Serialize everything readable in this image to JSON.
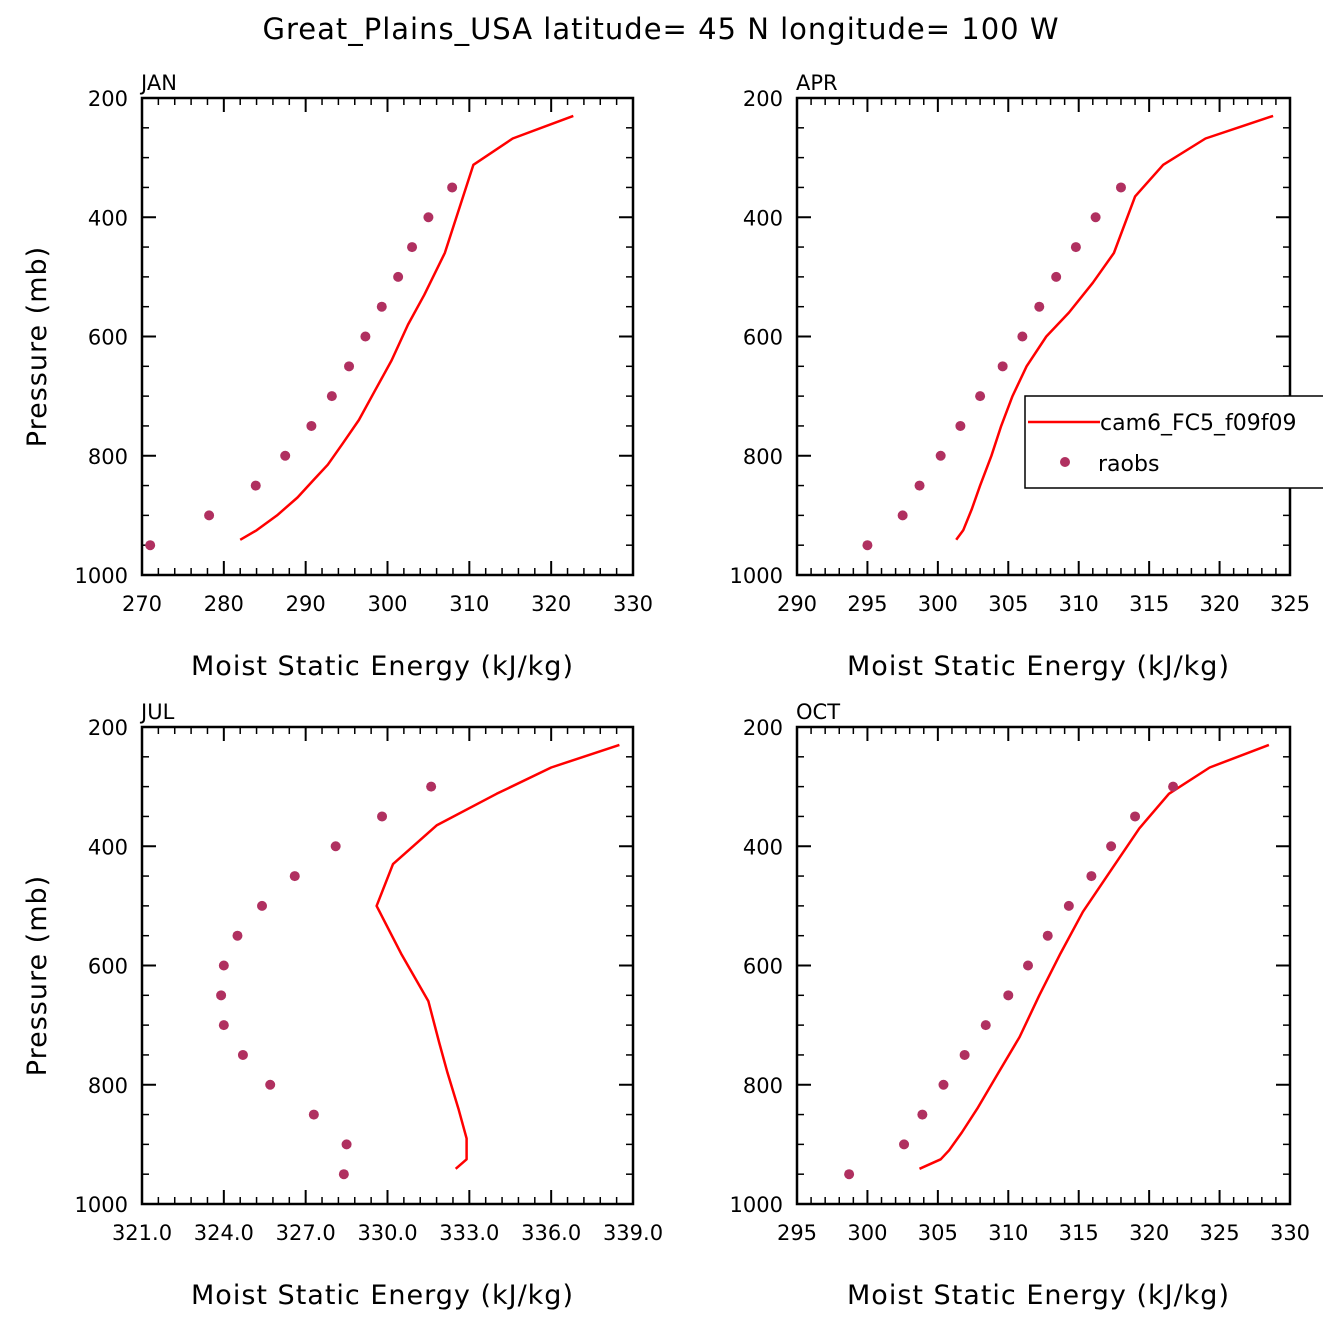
{
  "title": "Great_Plains_USA  latitude= 45 N longitude= 100 W",
  "colors": {
    "model": "#ff0000",
    "obs": "#b03060",
    "axes": "#000000"
  },
  "legend": {
    "placement": "right-middle of APR panel",
    "entries": [
      {
        "label": "cam6_FC5_f09f09",
        "style": "line",
        "color": "#ff0000"
      },
      {
        "label": "raobs",
        "style": "marker",
        "color": "#b03060"
      }
    ]
  },
  "chart_data": [
    {
      "type": "line",
      "panel_label": "JAN",
      "xlabel": "Moist Static Energy (kJ/kg)",
      "ylabel": "Pressure (mb)",
      "xlim": [
        270,
        330
      ],
      "ylim": [
        1000,
        200
      ],
      "y_inverted": true,
      "x_ticks": [
        "270",
        "280",
        "290",
        "300",
        "310",
        "320",
        "330"
      ],
      "x_tick_values": [
        270,
        280,
        290,
        300,
        310,
        320,
        330
      ],
      "y_ticks": [
        "200",
        "400",
        "600",
        "800",
        "1000"
      ],
      "y_tick_values": [
        200,
        400,
        600,
        800,
        1000
      ],
      "series": [
        {
          "name": "cam6_FC5_f09f09",
          "style": "line",
          "x": [
            282.0,
            284.0,
            286.5,
            289.0,
            291.0,
            292.7,
            294.5,
            296.5,
            298.5,
            300.5,
            302.5,
            304.5,
            307.0,
            310.5,
            315.3,
            322.7
          ],
          "y": [
            941,
            925,
            900,
            870,
            840,
            815,
            780,
            740,
            690,
            640,
            580,
            530,
            460,
            312,
            268,
            230
          ]
        },
        {
          "name": "raobs",
          "style": "marker",
          "x": [
            271.0,
            278.2,
            283.9,
            287.5,
            290.7,
            293.2,
            295.3,
            297.3,
            299.3,
            301.3,
            303.0,
            305.0,
            307.9
          ],
          "y": [
            950,
            900,
            850,
            800,
            750,
            700,
            650,
            600,
            550,
            500,
            450,
            400,
            350
          ]
        }
      ]
    },
    {
      "type": "line",
      "panel_label": "APR",
      "xlabel": "Moist Static Energy (kJ/kg)",
      "ylabel": "",
      "xlim": [
        290,
        325
      ],
      "ylim": [
        1000,
        200
      ],
      "y_inverted": true,
      "x_ticks": [
        "290",
        "295",
        "300",
        "305",
        "310",
        "315",
        "320",
        "325"
      ],
      "x_tick_values": [
        290,
        295,
        300,
        305,
        310,
        315,
        320,
        325
      ],
      "y_ticks": [
        "200",
        "400",
        "600",
        "800",
        "1000"
      ],
      "y_tick_values": [
        200,
        400,
        600,
        800,
        1000
      ],
      "series": [
        {
          "name": "cam6_FC5_f09f09",
          "style": "line",
          "x": [
            301.3,
            301.8,
            302.4,
            303.0,
            303.8,
            304.5,
            305.3,
            306.3,
            307.7,
            309.3,
            311.0,
            312.5,
            314.0,
            316.0,
            319.0,
            323.8
          ],
          "y": [
            941,
            925,
            890,
            850,
            800,
            750,
            700,
            650,
            600,
            560,
            510,
            460,
            365,
            312,
            268,
            230
          ]
        },
        {
          "name": "raobs",
          "style": "marker",
          "x": [
            295.0,
            297.5,
            298.7,
            300.2,
            301.6,
            303.0,
            304.6,
            306.0,
            307.2,
            308.4,
            309.8,
            311.2,
            313.0
          ],
          "y": [
            950,
            900,
            850,
            800,
            750,
            700,
            650,
            600,
            550,
            500,
            450,
            400,
            350
          ]
        }
      ]
    },
    {
      "type": "line",
      "panel_label": "JUL",
      "xlabel": "Moist Static Energy (kJ/kg)",
      "ylabel": "Pressure (mb)",
      "xlim": [
        321.0,
        339.0
      ],
      "ylim": [
        1000,
        200
      ],
      "y_inverted": true,
      "x_ticks": [
        "321.0",
        "324.0",
        "327.0",
        "330.0",
        "333.0",
        "336.0",
        "339.0"
      ],
      "x_tick_values": [
        321,
        324,
        327,
        330,
        333,
        336,
        339
      ],
      "y_ticks": [
        "200",
        "400",
        "600",
        "800",
        "1000"
      ],
      "y_tick_values": [
        200,
        400,
        600,
        800,
        1000
      ],
      "series": [
        {
          "name": "cam6_FC5_f09f09",
          "style": "line",
          "x": [
            332.5,
            332.9,
            332.9,
            332.6,
            332.2,
            331.9,
            331.5,
            330.5,
            329.6,
            330.2,
            331.8,
            334.0,
            336.0,
            338.5
          ],
          "y": [
            941,
            925,
            890,
            840,
            780,
            730,
            660,
            580,
            500,
            430,
            365,
            312,
            268,
            230
          ]
        },
        {
          "name": "raobs",
          "style": "marker",
          "x": [
            328.4,
            328.5,
            327.3,
            325.7,
            324.7,
            324.0,
            323.9,
            324.0,
            324.5,
            325.4,
            326.6,
            328.1,
            329.8,
            331.6
          ],
          "y": [
            950,
            900,
            850,
            800,
            750,
            700,
            650,
            600,
            550,
            500,
            450,
            400,
            350,
            300
          ]
        }
      ]
    },
    {
      "type": "line",
      "panel_label": "OCT",
      "xlabel": "Moist Static Energy (kJ/kg)",
      "ylabel": "",
      "xlim": [
        295,
        330
      ],
      "ylim": [
        1000,
        200
      ],
      "y_inverted": true,
      "x_ticks": [
        "295",
        "300",
        "305",
        "310",
        "315",
        "320",
        "325",
        "330"
      ],
      "x_tick_values": [
        295,
        300,
        305,
        310,
        315,
        320,
        325,
        330
      ],
      "y_ticks": [
        "200",
        "400",
        "600",
        "800",
        "1000"
      ],
      "y_tick_values": [
        200,
        400,
        600,
        800,
        1000
      ],
      "series": [
        {
          "name": "cam6_FC5_f09f09",
          "style": "line",
          "x": [
            303.7,
            305.2,
            305.8,
            306.7,
            307.8,
            309.3,
            310.8,
            312.2,
            313.7,
            315.3,
            317.3,
            319.3,
            321.4,
            324.3,
            328.5
          ],
          "y": [
            941,
            925,
            910,
            880,
            840,
            780,
            720,
            650,
            580,
            510,
            440,
            370,
            312,
            268,
            230
          ]
        },
        {
          "name": "raobs",
          "style": "marker",
          "x": [
            298.7,
            302.6,
            303.9,
            305.4,
            306.9,
            308.4,
            310.0,
            311.4,
            312.8,
            314.3,
            315.9,
            317.3,
            319.0,
            321.7
          ],
          "y": [
            950,
            900,
            850,
            800,
            750,
            700,
            650,
            600,
            550,
            500,
            450,
            400,
            350,
            300
          ]
        }
      ]
    }
  ]
}
